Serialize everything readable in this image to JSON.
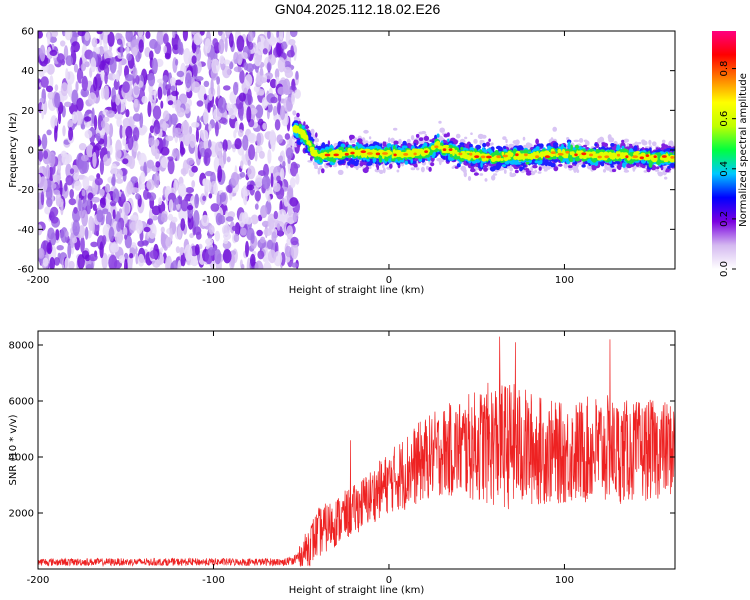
{
  "title": "GN04.2025.112.18.02.E26",
  "chart_data": [
    {
      "type": "heatmap",
      "name": "spectrogram",
      "xlabel": "Height of straight line (km)",
      "ylabel": "Frequency (Hz)",
      "xlim": [
        -200,
        163
      ],
      "ylim": [
        -60,
        60
      ],
      "xticks": [
        -200,
        -100,
        0,
        100
      ],
      "yticks": [
        -60,
        -40,
        -20,
        0,
        20,
        40,
        60
      ],
      "noise_region_x": [
        -200,
        -52
      ],
      "signal_track": {
        "x": [
          -54,
          -50,
          -46,
          -43,
          -40,
          -30,
          -20,
          -10,
          0,
          10,
          20,
          25,
          28,
          30,
          40,
          50,
          60,
          70,
          80,
          90,
          100,
          110,
          120,
          130,
          140,
          150,
          163
        ],
        "y": [
          11,
          9,
          4,
          -1,
          -3,
          -2,
          -1,
          -2,
          -2,
          -2,
          -1,
          0,
          3,
          1,
          -2,
          -3,
          -4,
          -3,
          -3,
          -2,
          -2,
          -2,
          -3,
          -3,
          -3,
          -4,
          -4
        ]
      },
      "colorbar": {
        "label": "Normalized spectral amplitude",
        "ticks": [
          0.0,
          0.2,
          0.4,
          0.6,
          0.8
        ],
        "range": [
          0.0,
          0.95
        ],
        "colors": [
          "#ffffff",
          "#d4b8f0",
          "#7a00e0",
          "#0000ff",
          "#00c8ff",
          "#00ff40",
          "#c0ff00",
          "#ffff00",
          "#ff8000",
          "#ff0000",
          "#ff0080"
        ]
      }
    },
    {
      "type": "line",
      "name": "snr",
      "xlabel": "Height of straight line (km)",
      "ylabel": "SNR (10 * v/v)",
      "xlim": [
        -200,
        163
      ],
      "ylim": [
        0,
        8500
      ],
      "xticks": [
        -200,
        -100,
        0,
        100
      ],
      "yticks": [
        2000,
        4000,
        6000,
        8000
      ],
      "color": "#ee2222",
      "envelope": {
        "x": [
          -200,
          -60,
          -55,
          -50,
          -45,
          -40,
          -30,
          -20,
          -10,
          0,
          10,
          20,
          30,
          40,
          50,
          60,
          70,
          80,
          90,
          100,
          110,
          120,
          130,
          140,
          150,
          163
        ],
        "mean": [
          250,
          250,
          280,
          500,
          900,
          1300,
          1700,
          2100,
          2600,
          3100,
          3500,
          3900,
          4200,
          4300,
          4400,
          4500,
          4400,
          4300,
          4200,
          4100,
          4200,
          4300,
          4200,
          4200,
          4250,
          4300
        ],
        "amplitude": [
          150,
          150,
          200,
          400,
          800,
          900,
          900,
          900,
          1000,
          1100,
          1400,
          1500,
          1600,
          1800,
          2000,
          2300,
          2300,
          2100,
          1900,
          1800,
          1900,
          2000,
          1900,
          1800,
          1800,
          1700
        ]
      },
      "peaks": [
        {
          "x": 63,
          "y": 8300
        },
        {
          "x": 72,
          "y": 8100
        },
        {
          "x": 126,
          "y": 8200
        },
        {
          "x": -22,
          "y": 4600
        }
      ]
    }
  ]
}
